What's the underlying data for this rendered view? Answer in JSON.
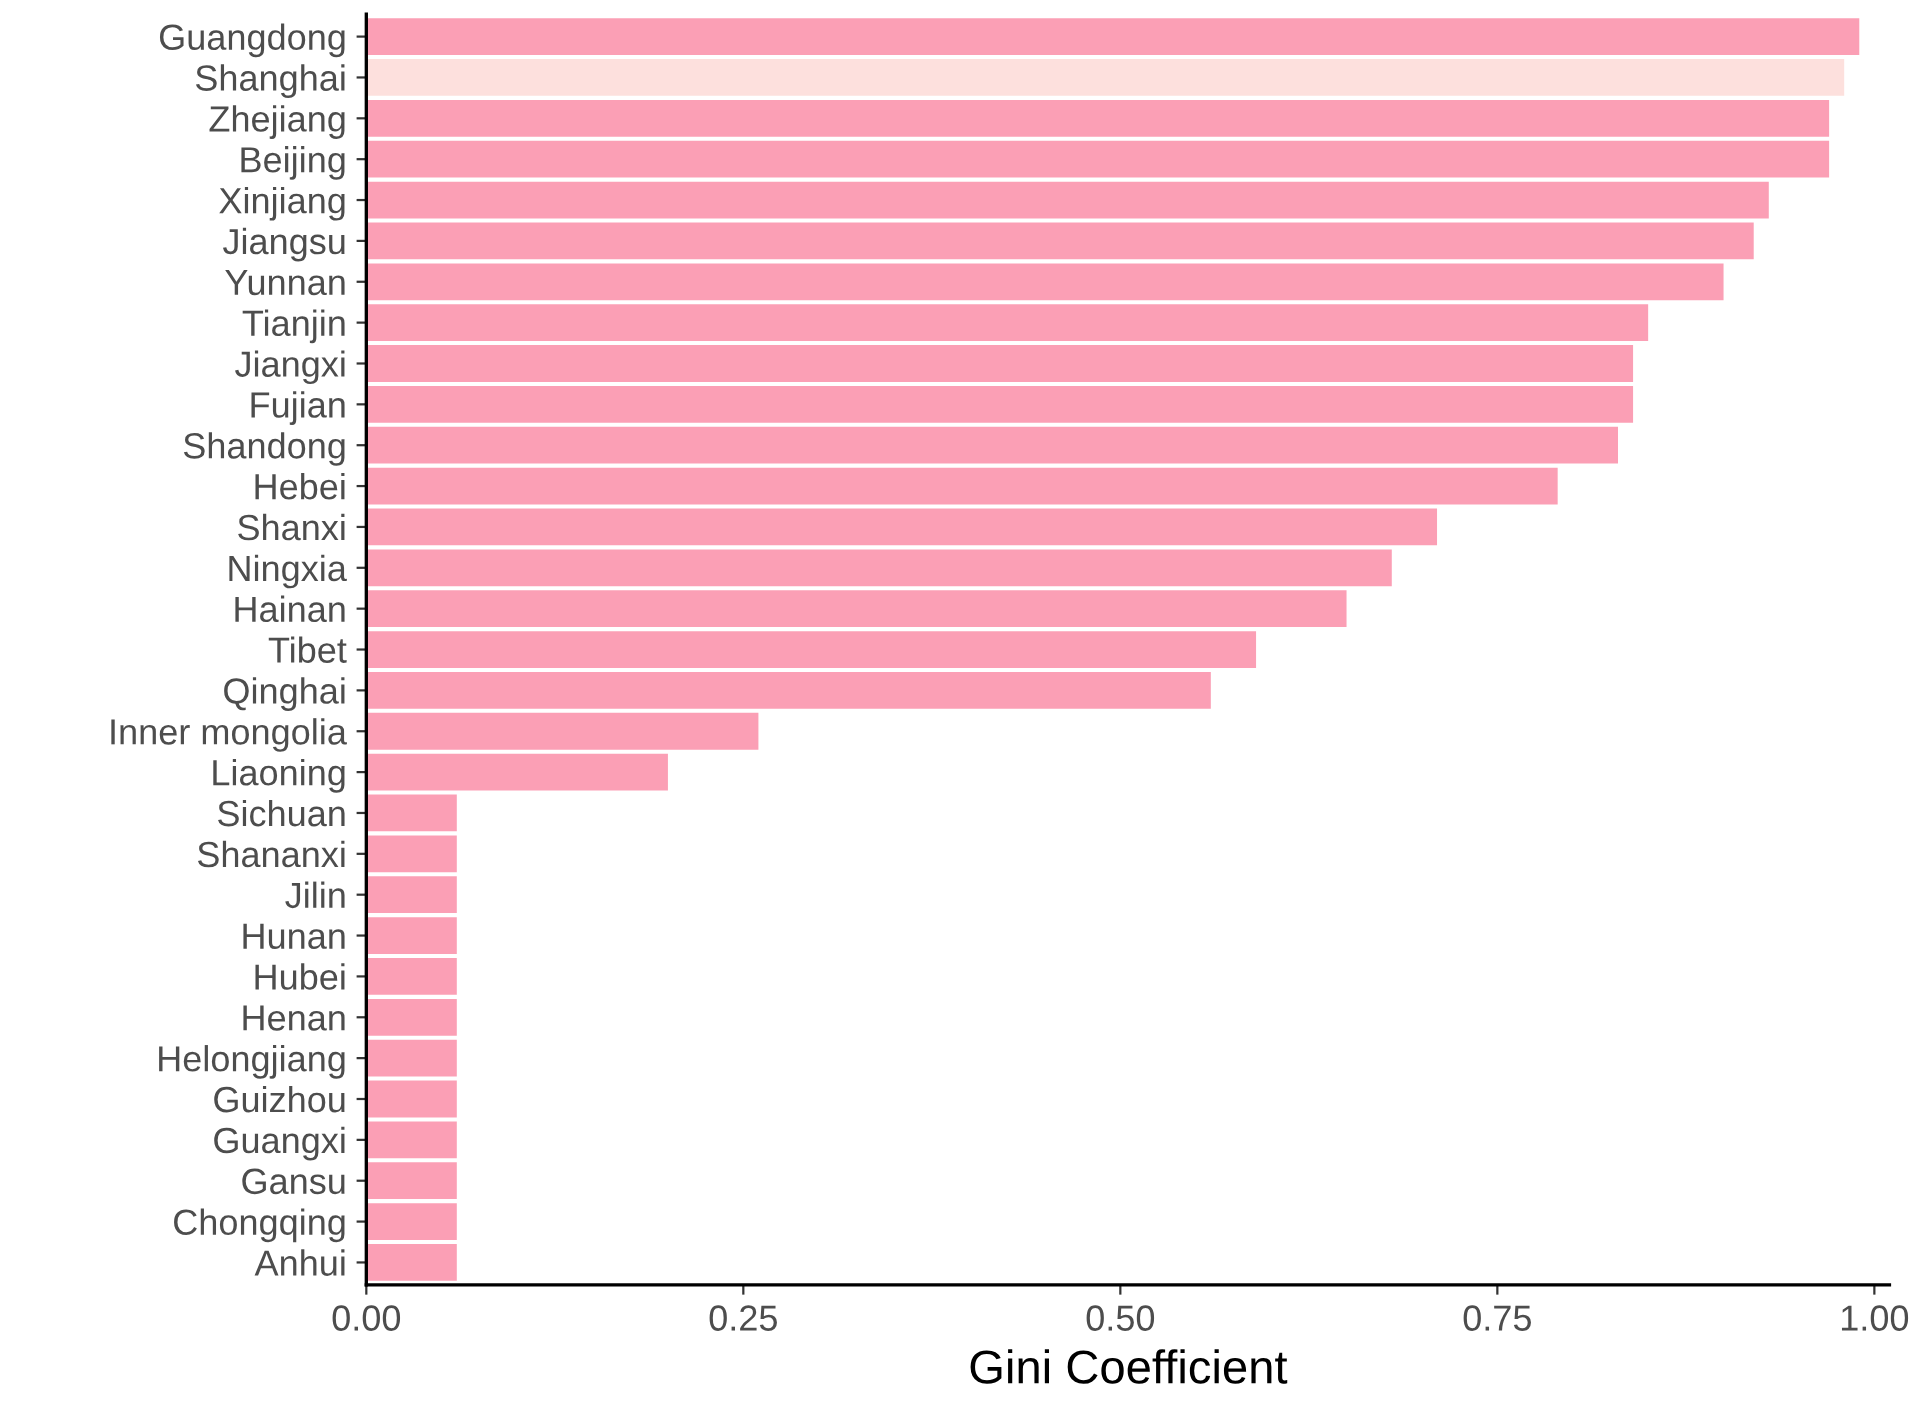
{
  "chart_data": {
    "type": "bar",
    "orientation": "horizontal",
    "xlabel": "Gini Coefficient",
    "categories": [
      "Guangdong",
      "Shanghai",
      "Zhejiang",
      "Beijing",
      "Xinjiang",
      "Jiangsu",
      "Yunnan",
      "Tianjin",
      "Jiangxi",
      "Fujian",
      "Shandong",
      "Hebei",
      "Shanxi",
      "Ningxia",
      "Hainan",
      "Tibet",
      "Qinghai",
      "Inner mongolia",
      "Liaoning",
      "Sichuan",
      "Shananxi",
      "Jilin",
      "Hunan",
      "Hubei",
      "Henan",
      "Helongjiang",
      "Guizhou",
      "Guangxi",
      "Gansu",
      "Chongqing",
      "Anhui"
    ],
    "values": [
      0.99,
      0.98,
      0.97,
      0.97,
      0.93,
      0.92,
      0.9,
      0.85,
      0.84,
      0.84,
      0.83,
      0.79,
      0.71,
      0.68,
      0.65,
      0.59,
      0.56,
      0.26,
      0.2,
      0.06,
      0.06,
      0.06,
      0.06,
      0.06,
      0.06,
      0.06,
      0.06,
      0.06,
      0.06,
      0.06,
      0.06
    ],
    "colors": [
      "#fb9fb5",
      "#fde0dd",
      "#fb9fb5",
      "#fb9fb5",
      "#fb9fb5",
      "#fb9fb5",
      "#fb9fb5",
      "#fb9fb5",
      "#fb9fb5",
      "#fb9fb5",
      "#fb9fb5",
      "#fb9fb5",
      "#fb9fb5",
      "#fb9fb5",
      "#fb9fb5",
      "#fb9fb5",
      "#fb9fb5",
      "#fb9fb5",
      "#fb9fb5",
      "#fb9fb5",
      "#fb9fb5",
      "#fb9fb5",
      "#fb9fb5",
      "#fb9fb5",
      "#fb9fb5",
      "#fb9fb5",
      "#fb9fb5",
      "#fb9fb5",
      "#fb9fb5",
      "#fb9fb5",
      "#fb9fb5"
    ],
    "xlim": [
      0,
      1.01
    ],
    "xticks": [
      {
        "value": 0,
        "label": "0.00"
      },
      {
        "value": 0.25,
        "label": "0.25"
      },
      {
        "value": 0.5,
        "label": "0.50"
      },
      {
        "value": 0.75,
        "label": "0.75"
      },
      {
        "value": 1,
        "label": "1.00"
      }
    ],
    "grid": false,
    "legend": false
  }
}
